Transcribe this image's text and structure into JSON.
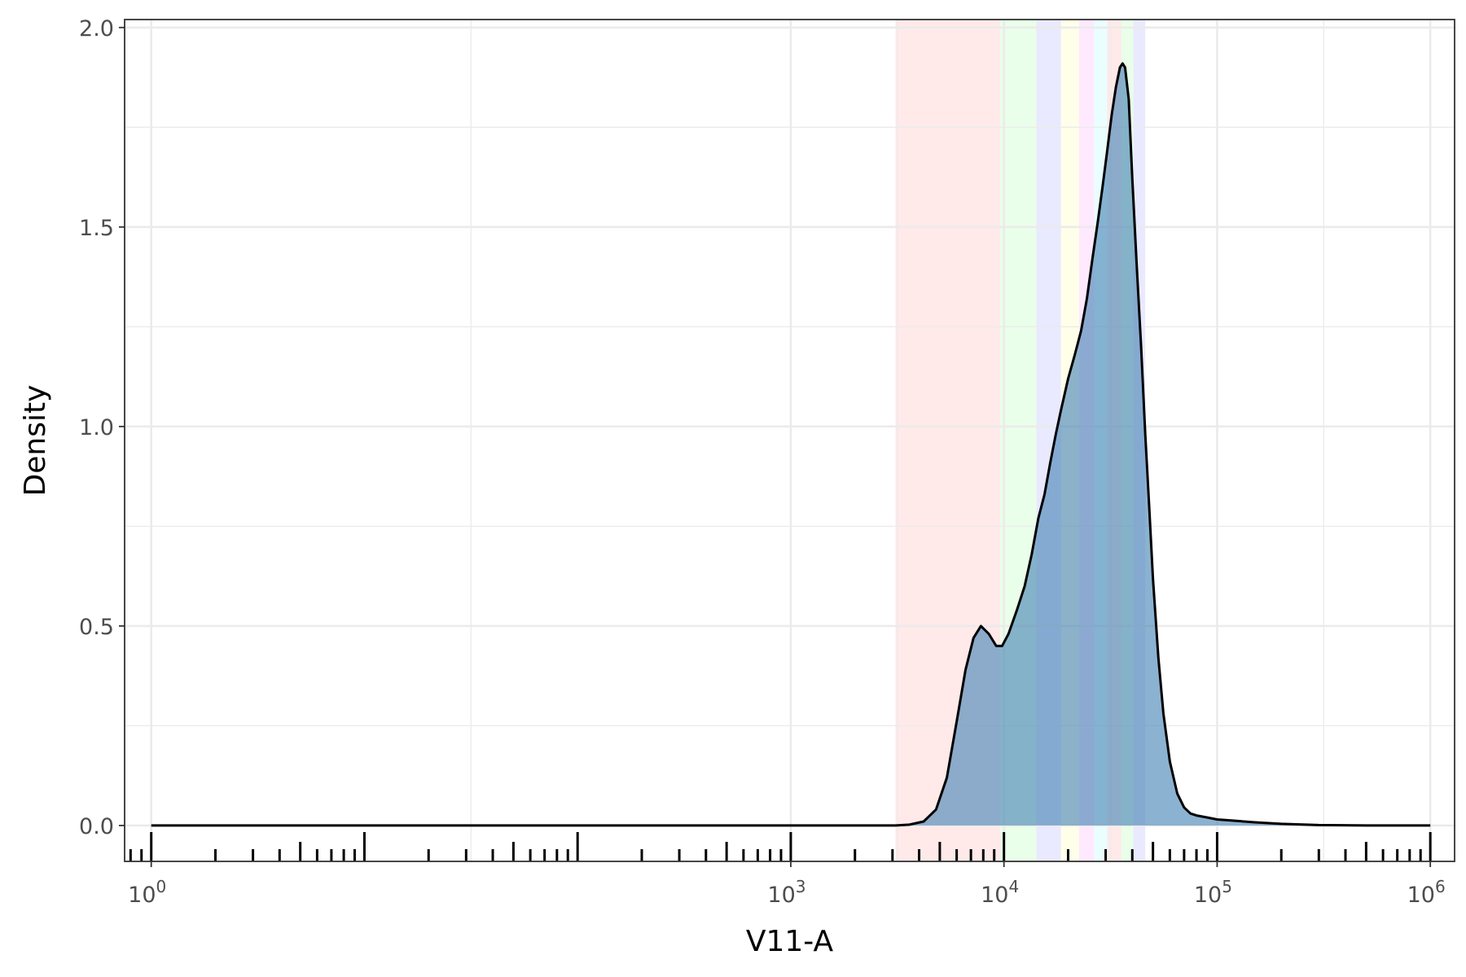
{
  "chart_data": {
    "type": "area",
    "title": "",
    "xlabel": "V11-A",
    "ylabel": "Density",
    "x_scale": "log10",
    "xlim": [
      0.75,
      1300000
    ],
    "ylim": [
      -0.09,
      2.02
    ],
    "x_ticks": [
      {
        "value": 1,
        "base": "10",
        "exp": "0"
      },
      {
        "value": 1000,
        "base": "10",
        "exp": "3"
      },
      {
        "value": 10000,
        "base": "10",
        "exp": "4"
      },
      {
        "value": 100000,
        "base": "10",
        "exp": "5"
      },
      {
        "value": 1000000,
        "base": "10",
        "exp": "6"
      }
    ],
    "y_ticks": [
      {
        "value": 0.0,
        "label": "0.0"
      },
      {
        "value": 0.5,
        "label": "0.5"
      },
      {
        "value": 1.0,
        "label": "1.0"
      },
      {
        "value": 1.5,
        "label": "1.5"
      },
      {
        "value": 2.0,
        "label": "2.0"
      }
    ],
    "grid": true,
    "rug_ticks": true,
    "gate_bands": [
      {
        "from": 3100,
        "to": 9600,
        "color": "#ff9999"
      },
      {
        "from": 9600,
        "to": 14200,
        "color": "#99ff99"
      },
      {
        "from": 14200,
        "to": 18500,
        "color": "#9999ff"
      },
      {
        "from": 18500,
        "to": 22500,
        "color": "#ffff99"
      },
      {
        "from": 22500,
        "to": 26500,
        "color": "#ff99ff"
      },
      {
        "from": 26500,
        "to": 30500,
        "color": "#99ffff"
      },
      {
        "from": 30500,
        "to": 35500,
        "color": "#ff9999"
      },
      {
        "from": 35500,
        "to": 40500,
        "color": "#99ff99"
      },
      {
        "from": 40500,
        "to": 46000,
        "color": "#9999ff"
      }
    ],
    "density_line_color": "#000000",
    "density_fill_color": "#4682b4",
    "series": [
      {
        "x": [
          1,
          10,
          100,
          1000,
          3100,
          3600,
          4200,
          4800,
          5400,
          6000,
          6600,
          7200,
          7800,
          8500,
          9200,
          9800,
          10500,
          11500,
          12500,
          13500,
          14500,
          15500,
          16500,
          17500,
          18500,
          20000,
          21500,
          23000,
          24500,
          26000,
          27500,
          29000,
          30500,
          32000,
          33500,
          35000,
          36000,
          37000,
          38500,
          40000,
          42000,
          44000,
          46000,
          48000,
          50000,
          53000,
          56000,
          60000,
          65000,
          70000,
          75000,
          80000,
          90000,
          100000,
          120000,
          150000,
          200000,
          300000,
          500000,
          1000000
        ],
        "y": [
          0,
          0,
          0,
          0,
          0.0,
          0.002,
          0.01,
          0.04,
          0.12,
          0.26,
          0.39,
          0.47,
          0.5,
          0.48,
          0.45,
          0.45,
          0.48,
          0.54,
          0.6,
          0.68,
          0.77,
          0.83,
          0.91,
          0.98,
          1.04,
          1.12,
          1.18,
          1.24,
          1.32,
          1.42,
          1.51,
          1.6,
          1.69,
          1.78,
          1.85,
          1.9,
          1.91,
          1.9,
          1.82,
          1.62,
          1.4,
          1.2,
          0.98,
          0.8,
          0.62,
          0.42,
          0.28,
          0.16,
          0.08,
          0.045,
          0.03,
          0.025,
          0.02,
          0.015,
          0.012,
          0.008,
          0.004,
          0.001,
          0.0,
          0.0
        ]
      }
    ]
  }
}
